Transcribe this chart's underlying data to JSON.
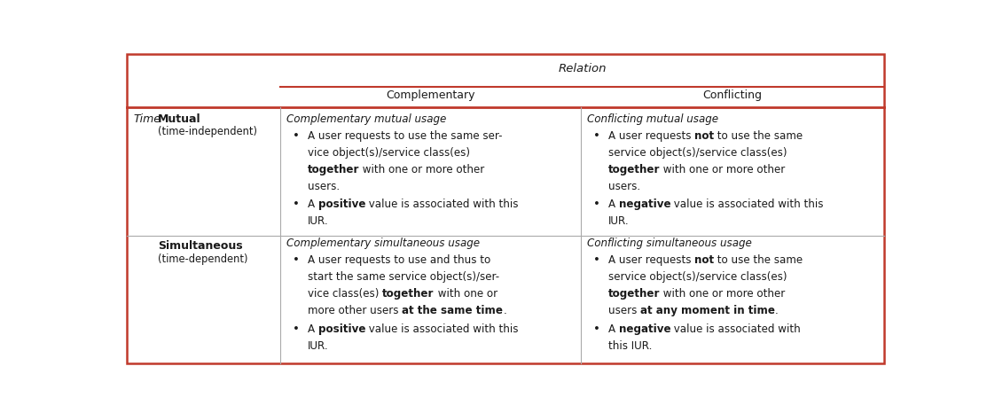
{
  "fig_width": 11.13,
  "fig_height": 4.66,
  "bg_color": "#ffffff",
  "border_color": "#c0392b",
  "text_color": "#1a1a1a",
  "relation_label": "Relation",
  "comp_label": "Complementary",
  "conf_label": "Conflicting",
  "time_label": "Time",
  "mutual_bold": "Mutual",
  "mutual_sub": "(time-independent)",
  "simul_bold": "Simultaneous",
  "simul_sub": "(time-dependent)"
}
